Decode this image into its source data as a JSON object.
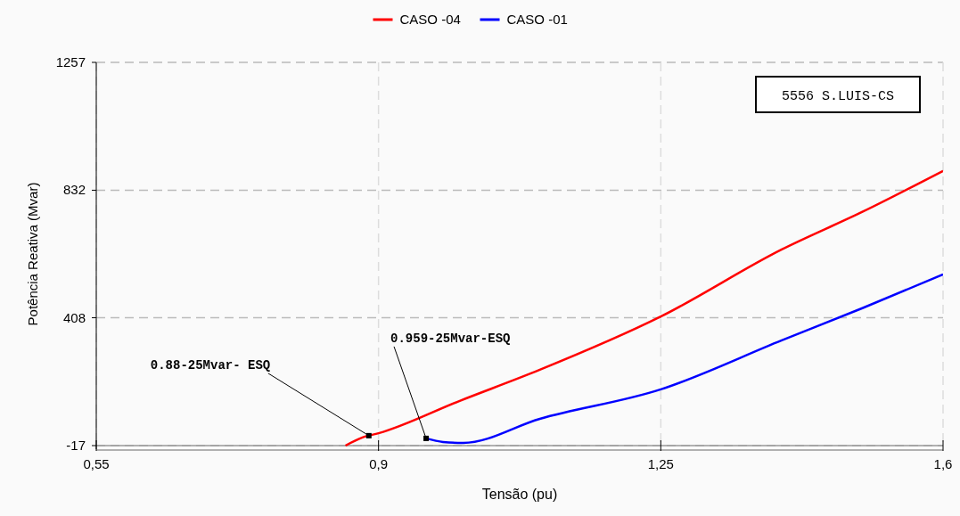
{
  "chart_data": {
    "type": "line",
    "xlabel": "Tensão (pu)",
    "ylabel": "Potência Reativa (Mvar)",
    "xlim": [
      0.55,
      1.6
    ],
    "xticks": [
      {
        "value": 0.55,
        "label": "0,55"
      },
      {
        "value": 0.9,
        "label": "0,9"
      },
      {
        "value": 1.25,
        "label": "1,25"
      },
      {
        "value": 1.6,
        "label": "1,6"
      }
    ],
    "ylim": [
      -17,
      1257
    ],
    "yticks": [
      -17,
      408,
      832,
      1257
    ],
    "grid": true,
    "legend": "top",
    "series": [
      {
        "name": "CASO -04",
        "color": "#ff0000",
        "x": [
          0.859,
          0.88,
          0.9,
          1.0,
          1.1,
          1.25,
          1.4,
          1.5,
          1.6
        ],
        "values": [
          -17,
          10,
          24,
          131,
          235,
          412,
          635,
          760,
          896
        ]
      },
      {
        "name": "CASO -01",
        "color": "#0000ff",
        "x": [
          0.959,
          0.98,
          1.005,
          1.1,
          1.25,
          1.4,
          1.5,
          1.6
        ],
        "values": [
          7,
          -5,
          -8,
          72,
          170,
          333,
          440,
          552
        ]
      }
    ],
    "annotations": [
      {
        "text": "0.88-25Mvar- ESQ",
        "x": 0.888,
        "y": 16
      },
      {
        "text": "0.959-25Mvar-ESQ",
        "x": 0.959,
        "y": 7
      },
      "5556 S.LUIS-CS"
    ]
  }
}
